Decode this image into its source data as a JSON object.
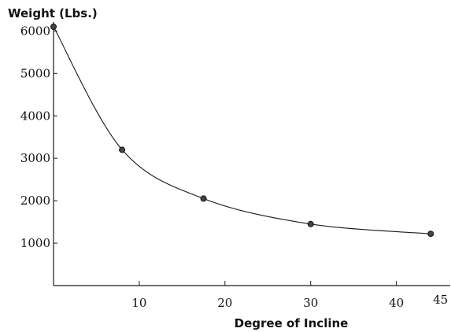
{
  "chart_data": {
    "type": "line",
    "ylabel": "Weight (Lbs.)",
    "xlabel": "Degree of Incline",
    "x": [
      0,
      8,
      17.5,
      30,
      44
    ],
    "y": [
      6100,
      3200,
      2050,
      1450,
      1220
    ],
    "xlim": [
      0,
      46
    ],
    "ylim": [
      0,
      6100
    ],
    "x_ticks": [
      10,
      20,
      30,
      40,
      45
    ],
    "y_ticks": [
      1000,
      2000,
      3000,
      4000,
      5000,
      6000
    ],
    "x_tick_labels": [
      "10",
      "20",
      "30",
      "40",
      "45"
    ],
    "y_tick_labels": [
      "1000",
      "2000",
      "3000",
      "4000",
      "5000",
      "6000"
    ],
    "curve": "smooth",
    "grid": false,
    "colors": {
      "line": "#1a1a1a",
      "marker": "#444444"
    }
  }
}
